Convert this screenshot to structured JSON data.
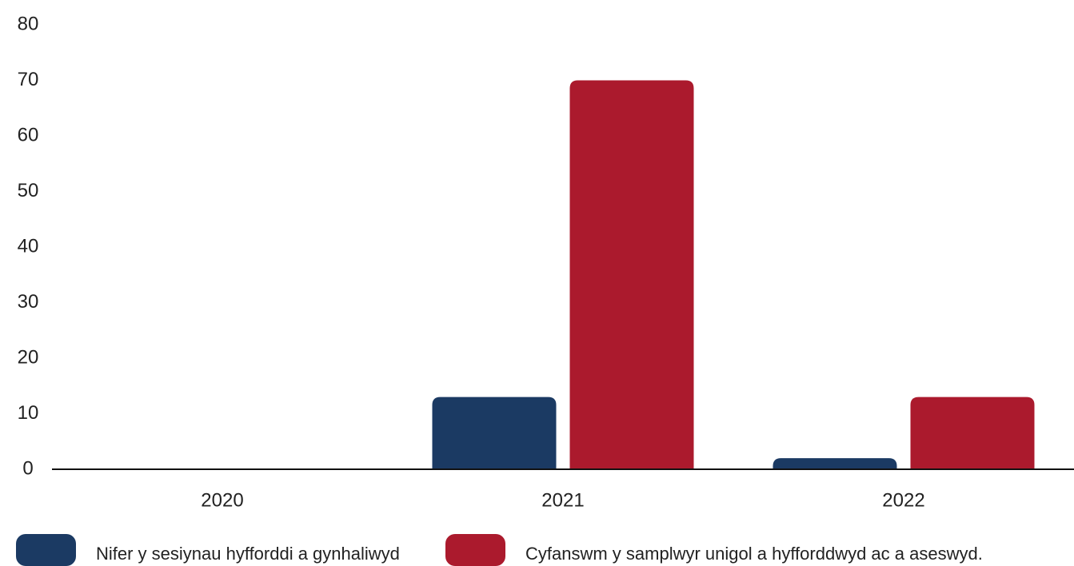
{
  "chart_data": {
    "type": "bar",
    "categories": [
      "2020",
      "2021",
      "2022"
    ],
    "series": [
      {
        "name": "Nifer y sesiynau hyfforddi a gynhaliwyd",
        "color": "#1b3a63",
        "values": [
          0,
          13,
          2
        ]
      },
      {
        "name": "Cyfanswm y samplwyr unigol a hyfforddwyd ac a aseswyd.",
        "color": "#ab1a2d",
        "values": [
          0,
          70,
          13
        ]
      }
    ],
    "ylim": [
      0,
      80
    ],
    "yticks": [
      0,
      10,
      20,
      30,
      40,
      50,
      60,
      70,
      80
    ],
    "grid": false,
    "legend": "bottom"
  }
}
